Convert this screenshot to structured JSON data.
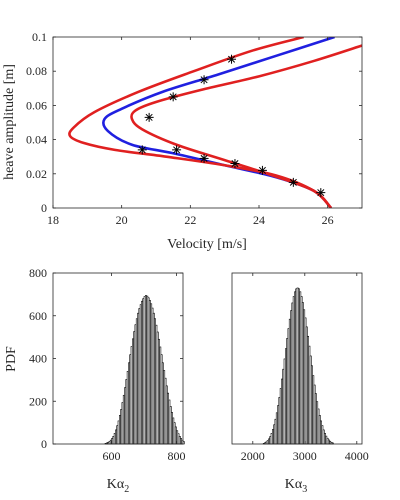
{
  "chart_data": [
    {
      "type": "line",
      "xlabel": "Velocity [m/s]",
      "ylabel": "heave amplitude [m]",
      "xlim": [
        18,
        27
      ],
      "ylim": [
        0,
        0.1
      ],
      "xticks": [
        "18",
        "20",
        "22",
        "24",
        "26"
      ],
      "yticks": [
        "0",
        "0.02",
        "0.04",
        "0.06",
        "0.08",
        "0.1"
      ],
      "grid": false,
      "series": [
        {
          "color": "#2020e0",
          "x": [
            26.1,
            25.6,
            24.5,
            23.0,
            21.5,
            20.3,
            19.6,
            19.5,
            20.0,
            21.2,
            22.8,
            24.5,
            26.2
          ],
          "y": [
            0.0,
            0.01,
            0.018,
            0.025,
            0.032,
            0.037,
            0.045,
            0.052,
            0.058,
            0.068,
            0.078,
            0.089,
            0.1
          ]
        },
        {
          "color": "#e02020",
          "x": [
            26.1,
            25.6,
            24.5,
            23.0,
            21.3,
            19.8,
            18.9,
            18.5,
            18.6,
            19.2,
            20.5,
            22.1,
            23.8,
            25.3
          ],
          "y": [
            0.0,
            0.01,
            0.019,
            0.025,
            0.03,
            0.034,
            0.038,
            0.042,
            0.047,
            0.056,
            0.068,
            0.08,
            0.092,
            0.1
          ]
        },
        {
          "color": "#e02020",
          "x": [
            26.1,
            25.6,
            24.4,
            23.0,
            21.6,
            20.6,
            20.3,
            20.4,
            21.0,
            22.3,
            24.0,
            25.6,
            27.0
          ],
          "y": [
            0.0,
            0.01,
            0.019,
            0.028,
            0.037,
            0.046,
            0.052,
            0.057,
            0.062,
            0.069,
            0.077,
            0.086,
            0.095
          ]
        },
        {
          "color": "#000000",
          "marker": "asterisk",
          "x": [
            25.8,
            25.0,
            24.1,
            23.3,
            22.4,
            21.6,
            20.6,
            20.8,
            21.5,
            22.4,
            23.2
          ],
          "y": [
            0.009,
            0.015,
            0.022,
            0.026,
            0.029,
            0.034,
            0.034,
            0.053,
            0.065,
            0.075,
            0.087
          ]
        }
      ]
    },
    {
      "type": "bar",
      "ylabel": "PDF",
      "xlabel": "Kα₂",
      "xlabel_main": "Kα",
      "xlabel_sub": "2",
      "xlim": [
        420,
        820
      ],
      "ylim": [
        0,
        800
      ],
      "xticks": [
        "600",
        "800"
      ],
      "yticks": [
        "0",
        "200",
        "400",
        "600",
        "800"
      ],
      "color": "#000000",
      "bins": {
        "start": 580,
        "width": 4,
        "values": [
          3,
          5,
          8,
          12,
          18,
          26,
          36,
          50,
          66,
          86,
          108,
          134,
          162,
          194,
          228,
          264,
          302,
          340,
          380,
          418,
          456,
          492,
          526,
          558,
          586,
          612,
          634,
          652,
          668,
          680,
          690,
          695,
          692,
          684,
          672,
          656,
          636,
          612,
          586,
          556,
          524,
          490,
          454,
          418,
          380,
          344,
          308,
          272,
          238,
          206,
          176,
          148,
          122,
          100,
          80,
          62,
          48,
          36,
          26,
          18,
          12
        ]
      }
    },
    {
      "type": "bar",
      "xlabel": "Kα₃",
      "xlabel_main": "Kα",
      "xlabel_sub": "3",
      "xlim": [
        1600,
        4100
      ],
      "ylim": [
        0,
        800
      ],
      "xticks": [
        "2000",
        "3000",
        "4000"
      ],
      "yticks": [],
      "color": "#000000",
      "bins": {
        "start": 2200,
        "width": 25,
        "values": [
          3,
          6,
          10,
          16,
          24,
          35,
          50,
          68,
          90,
          116,
          146,
          180,
          218,
          260,
          304,
          350,
          398,
          446,
          494,
          540,
          584,
          624,
          660,
          690,
          712,
          726,
          730,
          726,
          712,
          690,
          662,
          628,
          590,
          548,
          504,
          458,
          412,
          366,
          320,
          276,
          236,
          198,
          164,
          134,
          108,
          86,
          66,
          50,
          37,
          27,
          19,
          13,
          8,
          5
        ]
      }
    }
  ]
}
